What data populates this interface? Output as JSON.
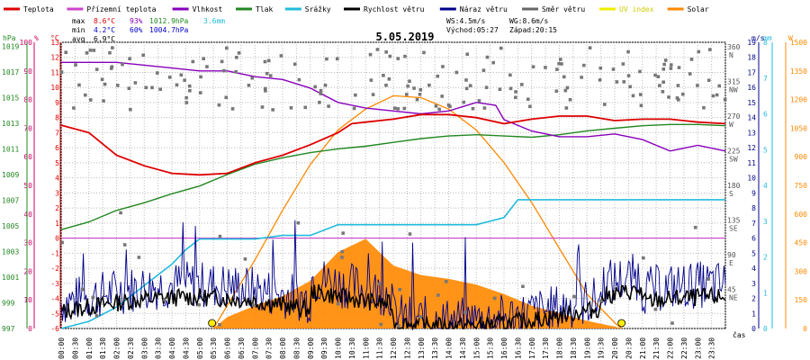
{
  "chart_data": {
    "type": "line",
    "title": "5.05.2019",
    "legend": [
      {
        "name": "Teplota",
        "color": "#dd0000"
      },
      {
        "name": "Přízemní teplota",
        "color": "#cc44cc"
      },
      {
        "name": "Vlhkost",
        "color": "#8800bb"
      },
      {
        "name": "Tlak",
        "color": "#228822"
      },
      {
        "name": "Srážky",
        "color": "#22bbdd"
      },
      {
        "name": "Rychlost větru",
        "color": "#000000"
      },
      {
        "name": "Náraz větru",
        "color": "#000088"
      },
      {
        "name": "Směr větru",
        "color": "#666666"
      },
      {
        "name": "UV index",
        "color": "#eeee00"
      },
      {
        "name": "Solar",
        "color": "#ff8800"
      }
    ],
    "stats": {
      "max_label": "max",
      "max_temp": "8.6°C",
      "max_hum": "93%",
      "max_pres": "1012.9hPa",
      "max_rain": "3.6mm",
      "min_label": "min",
      "min_temp": "4.2°C",
      "min_hum": "60%",
      "min_pres": "1004.7hPa",
      "avg_label": "avg",
      "avg_temp": "6.9°C",
      "ws": "WS:4.5m/s",
      "wg": "WG:8.6m/s",
      "sunrise": "Východ:05:27",
      "sunset": "Západ:20:15"
    },
    "unit_labels": {
      "hpa": "hPa",
      "pct": "%",
      "degc": "°C",
      "ms": "m/s",
      "mm": "mm",
      "w": "W",
      "cas": "čas"
    },
    "axes": {
      "pressure": [
        "1019",
        "1017",
        "1015",
        "1013",
        "1011",
        "1009",
        "1007",
        "1005",
        "1003",
        "1001",
        "999",
        "997"
      ],
      "humidity": [
        "100",
        "90",
        "80",
        "70",
        "60",
        "50",
        "40",
        "30",
        "20",
        "10",
        "0"
      ],
      "temperature": [
        "13",
        "12",
        "11",
        "10",
        "9",
        "8",
        "7",
        "6",
        "5",
        "4",
        "3",
        "2",
        "1",
        "0",
        "-1",
        "-2",
        "-3",
        "-4",
        "-5",
        "-6"
      ],
      "direction": [
        "360\nN",
        "315\nNW",
        "270\nW",
        "225\nSW",
        "180\nS",
        "135\nSE",
        "90\nE",
        "45\nNE"
      ],
      "wind_ms": [
        "19",
        "18",
        "17",
        "16",
        "15",
        "14",
        "13",
        "12",
        "11",
        "10",
        "9",
        "8",
        "7",
        "6",
        "5",
        "4",
        "3",
        "2",
        "1",
        "0"
      ],
      "rain_mm": [
        "8",
        "7",
        "6",
        "5",
        "4",
        "3",
        "2",
        "1",
        "0"
      ],
      "solar_w": [
        "1500",
        "1350",
        "1200",
        "1050",
        "900",
        "750",
        "600",
        "450",
        "300",
        "150",
        "0"
      ],
      "x_ticks": [
        "00:00",
        "00:30",
        "01:00",
        "01:30",
        "02:00",
        "02:30",
        "03:00",
        "03:30",
        "04:00",
        "04:30",
        "05:00",
        "05:30",
        "06:00",
        "06:30",
        "07:00",
        "07:30",
        "08:00",
        "08:30",
        "09:00",
        "09:30",
        "10:00",
        "10:30",
        "11:00",
        "11:30",
        "12:00",
        "12:30",
        "13:00",
        "13:30",
        "14:00",
        "14:30",
        "15:00",
        "15:30",
        "16:00",
        "16:30",
        "17:00",
        "17:30",
        "18:00",
        "18:30",
        "19:00",
        "19:30",
        "20:00",
        "20:30",
        "21:00",
        "21:30",
        "22:00",
        "22:30",
        "23:00",
        "23:30"
      ]
    },
    "x_range_hours": [
      0,
      24
    ],
    "series": [
      {
        "name": "Teplota",
        "unit": "°C",
        "x": [
          0,
          1,
          2,
          3,
          4,
          5,
          6,
          7,
          8,
          9,
          10,
          10.5,
          11,
          12,
          13,
          14,
          15,
          16,
          17,
          18,
          19,
          20,
          21,
          22,
          23,
          24
        ],
        "values": [
          7.5,
          7,
          5.5,
          4.8,
          4.3,
          4.2,
          4.3,
          5,
          5.5,
          6.2,
          7,
          7.6,
          7.7,
          7.9,
          8.2,
          8.2,
          8.0,
          7.6,
          7.9,
          8.1,
          8.1,
          7.8,
          7.9,
          7.9,
          7.7,
          7.6
        ]
      },
      {
        "name": "Vlhkost",
        "unit": "%",
        "x": [
          0,
          1,
          2,
          3,
          4,
          5,
          6,
          7,
          8,
          9,
          10,
          11,
          12,
          13,
          14,
          15,
          15.7,
          16,
          17,
          18,
          19,
          20,
          21,
          22,
          23,
          24
        ],
        "values": [
          93,
          93,
          93,
          92,
          91,
          90,
          90,
          88,
          87,
          84,
          79,
          77,
          76,
          75,
          76,
          79,
          78,
          73,
          69,
          67,
          67,
          68,
          66,
          62,
          64,
          62
        ]
      },
      {
        "name": "Tlak",
        "unit": "hPa",
        "x": [
          0,
          1,
          2,
          3,
          4,
          5,
          6,
          7,
          8,
          9,
          10,
          11,
          12,
          13,
          14,
          15,
          16,
          17,
          18,
          19,
          20,
          21,
          22,
          23,
          24
        ],
        "values": [
          1004.7,
          1005.3,
          1006.2,
          1006.8,
          1007.5,
          1008.1,
          1009.0,
          1009.8,
          1010.3,
          1010.7,
          1011.0,
          1011.2,
          1011.5,
          1011.8,
          1012.0,
          1012.1,
          1012.0,
          1011.9,
          1012.1,
          1012.4,
          1012.6,
          1012.8,
          1012.9,
          1012.9,
          1012.8
        ]
      },
      {
        "name": "Srážky",
        "unit": "mm",
        "x": [
          0,
          1,
          2,
          3,
          3.5,
          4,
          4.5,
          5,
          5.5,
          7,
          8,
          9,
          10,
          11,
          12,
          13,
          14,
          15,
          16,
          16.5,
          17,
          18,
          19,
          20,
          21,
          22,
          23,
          24
        ],
        "values": [
          0,
          0.2,
          0.6,
          1.2,
          1.5,
          1.8,
          2.2,
          2.5,
          2.5,
          2.5,
          2.6,
          2.6,
          2.9,
          2.9,
          2.9,
          2.9,
          2.9,
          2.9,
          3.1,
          3.6,
          3.6,
          3.6,
          3.6,
          3.6,
          3.6,
          3.6,
          3.6,
          3.6
        ]
      },
      {
        "name": "Solar",
        "unit": "W",
        "x": [
          5.5,
          6,
          7,
          8,
          9,
          10,
          11,
          12,
          13,
          14,
          15,
          16,
          17,
          18,
          19,
          20,
          20.25
        ],
        "values": [
          0,
          60,
          120,
          170,
          250,
          400,
          470,
          330,
          280,
          260,
          230,
          180,
          120,
          80,
          40,
          10,
          0
        ]
      },
      {
        "name": "Solar max",
        "unit": "W",
        "x": [
          5.5,
          6,
          7,
          8,
          9,
          10,
          11,
          12,
          13,
          14,
          15,
          16,
          17,
          18,
          19,
          20,
          20.25
        ],
        "values": [
          0,
          120,
          360,
          620,
          860,
          1040,
          1150,
          1220,
          1210,
          1150,
          1040,
          870,
          660,
          420,
          180,
          30,
          0
        ]
      }
    ],
    "zero_line_temp": 0
  }
}
